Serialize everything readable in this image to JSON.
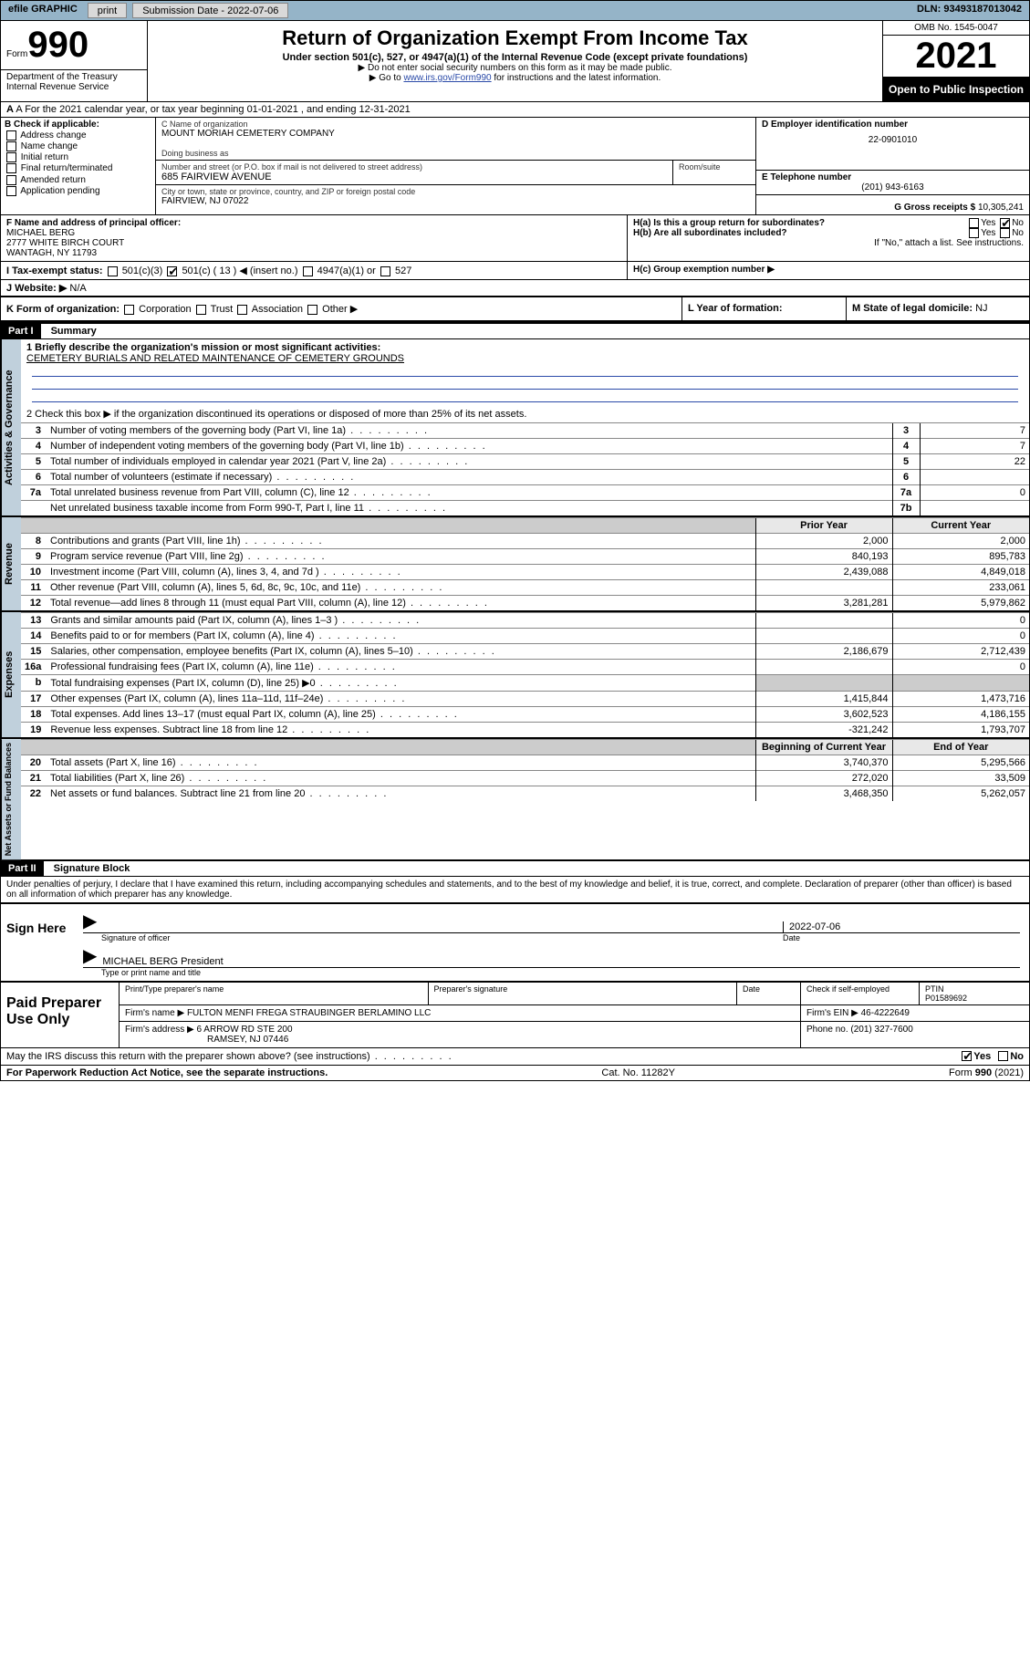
{
  "topbar": {
    "efile": "efile GRAPHIC",
    "print": "print",
    "subdate_label": "Submission Date - 2022-07-06",
    "dln": "DLN: 93493187013042"
  },
  "header": {
    "form_label": "Form",
    "form_number": "990",
    "dept": "Department of the Treasury",
    "irs": "Internal Revenue Service",
    "title": "Return of Organization Exempt From Income Tax",
    "subtitle": "Under section 501(c), 527, or 4947(a)(1) of the Internal Revenue Code (except private foundations)",
    "note1": "▶ Do not enter social security numbers on this form as it may be made public.",
    "note2a": "▶ Go to ",
    "note2b": "www.irs.gov/Form990",
    "note2c": " for instructions and the latest information.",
    "omb": "OMB No. 1545-0047",
    "year": "2021",
    "open": "Open to Public Inspection"
  },
  "rowA": {
    "text": "A For the 2021 calendar year, or tax year beginning 01-01-2021   , and ending 12-31-2021"
  },
  "checkB": {
    "label": "B Check if applicable:",
    "items": [
      "Address change",
      "Name change",
      "Initial return",
      "Final return/terminated",
      "Amended return",
      "Application pending"
    ]
  },
  "orgC": {
    "label": "C Name of organization",
    "name": "MOUNT MORIAH CEMETERY COMPANY",
    "dba_label": "Doing business as",
    "street_label": "Number and street (or P.O. box if mail is not delivered to street address)",
    "room_label": "Room/suite",
    "street": "685 FAIRVIEW AVENUE",
    "city_label": "City or town, state or province, country, and ZIP or foreign postal code",
    "city": "FAIRVIEW, NJ  07022"
  },
  "boxD": {
    "label": "D Employer identification number",
    "value": "22-0901010"
  },
  "boxE": {
    "label": "E Telephone number",
    "value": "(201) 943-6163"
  },
  "boxG": {
    "label": "G Gross receipts $",
    "value": "10,305,241"
  },
  "boxF": {
    "label": "F Name and address of principal officer:",
    "name": "MICHAEL BERG",
    "addr1": "2777 WHITE BIRCH COURT",
    "addr2": "WANTAGH, NY  11793"
  },
  "boxH": {
    "ha": "H(a)  Is this a group return for subordinates?",
    "hb": "H(b)  Are all subordinates included?",
    "hc": "H(c)  Group exemption number ▶",
    "yes": "Yes",
    "no": "No",
    "attach": "If \"No,\" attach a list. See instructions."
  },
  "rowI": {
    "label": "I    Tax-exempt status:",
    "c3": "501(c)(3)",
    "c": "501(c) ( 13 ) ◀ (insert no.)",
    "a1": "4947(a)(1) or",
    "a2": "527"
  },
  "rowJ": {
    "label": "J   Website: ▶",
    "value": "N/A"
  },
  "rowK": {
    "label": "K Form of organization:",
    "items": [
      "Corporation",
      "Trust",
      "Association",
      "Other ▶"
    ]
  },
  "rowL": {
    "label": "L Year of formation:"
  },
  "rowM": {
    "label": "M State of legal domicile:",
    "value": "NJ"
  },
  "part1": {
    "header": "Part I",
    "title": "Summary",
    "briefly": "1   Briefly describe the organization's mission or most significant activities:",
    "mission": "CEMETERY BURIALS AND RELATED MAINTENANCE OF CEMETERY GROUNDS",
    "line2": "2    Check this box ▶        if the organization discontinued its operations or disposed of more than 25% of its net assets.",
    "tabs": {
      "gov": "Activities & Governance",
      "rev": "Revenue",
      "exp": "Expenses",
      "net": "Net Assets or Fund Balances"
    }
  },
  "gov_rows": [
    {
      "n": "3",
      "d": "Number of voting members of the governing body (Part VI, line 1a)",
      "c": "3",
      "v": "7"
    },
    {
      "n": "4",
      "d": "Number of independent voting members of the governing body (Part VI, line 1b)",
      "c": "4",
      "v": "7"
    },
    {
      "n": "5",
      "d": "Total number of individuals employed in calendar year 2021 (Part V, line 2a)",
      "c": "5",
      "v": "22"
    },
    {
      "n": "6",
      "d": "Total number of volunteers (estimate if necessary)",
      "c": "6",
      "v": ""
    },
    {
      "n": "7a",
      "d": "Total unrelated business revenue from Part VIII, column (C), line 12",
      "c": "7a",
      "v": "0"
    },
    {
      "n": "",
      "d": "Net unrelated business taxable income from Form 990-T, Part I, line 11",
      "c": "7b",
      "v": ""
    }
  ],
  "colhead": {
    "prior": "Prior Year",
    "current": "Current Year",
    "begin": "Beginning of Current Year",
    "end": "End of Year"
  },
  "rev_rows": [
    {
      "n": "8",
      "d": "Contributions and grants (Part VIII, line 1h)",
      "p": "2,000",
      "c": "2,000"
    },
    {
      "n": "9",
      "d": "Program service revenue (Part VIII, line 2g)",
      "p": "840,193",
      "c": "895,783"
    },
    {
      "n": "10",
      "d": "Investment income (Part VIII, column (A), lines 3, 4, and 7d )",
      "p": "2,439,088",
      "c": "4,849,018"
    },
    {
      "n": "11",
      "d": "Other revenue (Part VIII, column (A), lines 5, 6d, 8c, 9c, 10c, and 11e)",
      "p": "",
      "c": "233,061"
    },
    {
      "n": "12",
      "d": "Total revenue—add lines 8 through 11 (must equal Part VIII, column (A), line 12)",
      "p": "3,281,281",
      "c": "5,979,862"
    }
  ],
  "exp_rows": [
    {
      "n": "13",
      "d": "Grants and similar amounts paid (Part IX, column (A), lines 1–3 )",
      "p": "",
      "c": "0"
    },
    {
      "n": "14",
      "d": "Benefits paid to or for members (Part IX, column (A), line 4)",
      "p": "",
      "c": "0"
    },
    {
      "n": "15",
      "d": "Salaries, other compensation, employee benefits (Part IX, column (A), lines 5–10)",
      "p": "2,186,679",
      "c": "2,712,439"
    },
    {
      "n": "16a",
      "d": "Professional fundraising fees (Part IX, column (A), line 11e)",
      "p": "",
      "c": "0"
    },
    {
      "n": "b",
      "d": "Total fundraising expenses (Part IX, column (D), line 25) ▶0",
      "p": "SHADE",
      "c": "SHADE"
    },
    {
      "n": "17",
      "d": "Other expenses (Part IX, column (A), lines 11a–11d, 11f–24e)",
      "p": "1,415,844",
      "c": "1,473,716"
    },
    {
      "n": "18",
      "d": "Total expenses. Add lines 13–17 (must equal Part IX, column (A), line 25)",
      "p": "3,602,523",
      "c": "4,186,155"
    },
    {
      "n": "19",
      "d": "Revenue less expenses. Subtract line 18 from line 12",
      "p": "-321,242",
      "c": "1,793,707"
    }
  ],
  "net_rows": [
    {
      "n": "20",
      "d": "Total assets (Part X, line 16)",
      "p": "3,740,370",
      "c": "5,295,566"
    },
    {
      "n": "21",
      "d": "Total liabilities (Part X, line 26)",
      "p": "272,020",
      "c": "33,509"
    },
    {
      "n": "22",
      "d": "Net assets or fund balances. Subtract line 21 from line 20",
      "p": "3,468,350",
      "c": "5,262,057"
    }
  ],
  "part2": {
    "header": "Part II",
    "title": "Signature Block",
    "decl": "Under penalties of perjury, I declare that I have examined this return, including accompanying schedules and statements, and to the best of my knowledge and belief, it is true, correct, and complete. Declaration of preparer (other than officer) is based on all information of which preparer has any knowledge."
  },
  "sign": {
    "here": "Sign Here",
    "sig_label": "Signature of officer",
    "date_label": "Date",
    "date": "2022-07-06",
    "name": "MICHAEL BERG President",
    "name_label": "Type or print name and title"
  },
  "paid": {
    "label": "Paid Preparer Use Only",
    "col1": "Print/Type preparer's name",
    "col2": "Preparer's signature",
    "col3": "Date",
    "check": "Check        if self-employed",
    "ptin_label": "PTIN",
    "ptin": "P01589692",
    "firm_name_label": "Firm's name    ▶",
    "firm_name": "FULTON MENFI FREGA STRAUBINGER BERLAMINO LLC",
    "firm_ein_label": "Firm's EIN ▶",
    "firm_ein": "46-4222649",
    "firm_addr_label": "Firm's address ▶",
    "firm_addr1": "6 ARROW RD STE 200",
    "firm_addr2": "RAMSEY, NJ  07446",
    "phone_label": "Phone no.",
    "phone": "(201) 327-7600"
  },
  "may": {
    "text": "May the IRS discuss this return with the preparer shown above? (see instructions)",
    "yes": "Yes",
    "no": "No"
  },
  "footer": {
    "left": "For Paperwork Reduction Act Notice, see the separate instructions.",
    "mid": "Cat. No. 11282Y",
    "right": "Form 990 (2021)"
  }
}
